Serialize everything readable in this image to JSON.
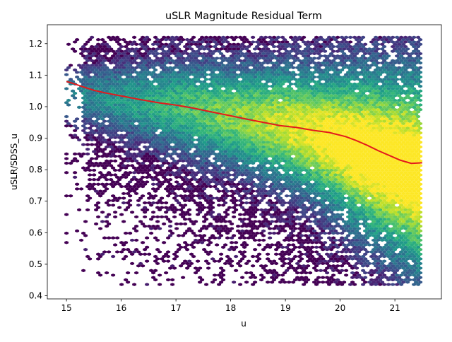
{
  "chart_data": {
    "type": "hexbin",
    "title": "uSLR Magnitude Residual Term",
    "xlabel": "u",
    "ylabel": "uSLR/SDSS_u",
    "xlim": [
      14.65,
      21.85
    ],
    "ylim": [
      0.39,
      1.26
    ],
    "xticks": [
      15,
      16,
      17,
      18,
      19,
      20,
      21
    ],
    "yticks": [
      0.4,
      0.5,
      0.6,
      0.7,
      0.8,
      0.9,
      1.0,
      1.1,
      1.2
    ],
    "xtick_labels": [
      "15",
      "16",
      "17",
      "18",
      "19",
      "20",
      "21"
    ],
    "ytick_labels": [
      "0.4",
      "0.5",
      "0.6",
      "0.7",
      "0.8",
      "0.9",
      "1.0",
      "1.1",
      "1.2"
    ],
    "grid": false,
    "colormap": "viridis",
    "density_ridge": {
      "x": [
        15.0,
        15.5,
        16.0,
        16.5,
        17.0,
        17.5,
        18.0,
        18.5,
        19.0,
        19.5,
        20.0,
        20.5,
        21.0,
        21.5
      ],
      "y": [
        1.04,
        1.03,
        1.02,
        1.01,
        1.0,
        0.985,
        0.97,
        0.955,
        0.94,
        0.915,
        0.885,
        0.85,
        0.82,
        0.79
      ],
      "spread": [
        0.06,
        0.07,
        0.08,
        0.09,
        0.1,
        0.11,
        0.11,
        0.12,
        0.13,
        0.14,
        0.16,
        0.18,
        0.2,
        0.22
      ]
    },
    "trend_line": {
      "color": "#e31a1c",
      "x": [
        15.0,
        15.1,
        15.3,
        15.5,
        15.7,
        16.0,
        16.3,
        16.7,
        17.0,
        17.3,
        17.6,
        18.0,
        18.3,
        18.6,
        18.9,
        19.2,
        19.5,
        19.8,
        20.1,
        20.3,
        20.5,
        20.7,
        20.9,
        21.1,
        21.3,
        21.5
      ],
      "y": [
        1.08,
        1.075,
        1.063,
        1.052,
        1.044,
        1.034,
        1.024,
        1.012,
        1.005,
        0.996,
        0.985,
        0.971,
        0.96,
        0.95,
        0.94,
        0.934,
        0.925,
        0.918,
        0.905,
        0.892,
        0.877,
        0.86,
        0.845,
        0.83,
        0.82,
        0.822
      ]
    }
  }
}
